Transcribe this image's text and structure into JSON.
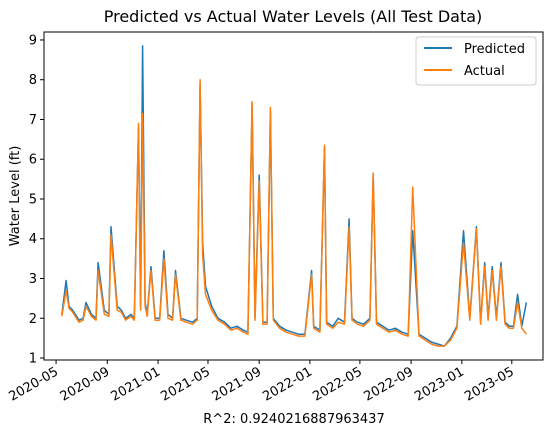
{
  "chart_data": {
    "type": "line",
    "title": "Predicted vs Actual Water Levels (All Test Data)",
    "xlabel": "R^2: 0.9240216887963437",
    "ylabel": "Water Level (ft)",
    "xlim": [
      "2020-04-02",
      "2023-07-15"
    ],
    "ylim": [
      0.95,
      9.2
    ],
    "grid": false,
    "legend_position": "upper right",
    "xticks": [
      "2020-05",
      "2020-09",
      "2021-01",
      "2021-05",
      "2021-09",
      "2022-01",
      "2022-05",
      "2022-09",
      "2023-01",
      "2023-05"
    ],
    "yticks": [
      1,
      2,
      3,
      4,
      5,
      6,
      7,
      8,
      9
    ],
    "x": [
      "2020-05-15",
      "2020-05-25",
      "2020-06-01",
      "2020-06-10",
      "2020-06-25",
      "2020-07-05",
      "2020-07-12",
      "2020-07-25",
      "2020-08-05",
      "2020-08-10",
      "2020-08-25",
      "2020-09-05",
      "2020-09-10",
      "2020-09-25",
      "2020-10-05",
      "2020-10-15",
      "2020-10-28",
      "2020-11-05",
      "2020-11-15",
      "2020-11-20",
      "2020-11-25",
      "2020-12-01",
      "2020-12-06",
      "2020-12-15",
      "2020-12-25",
      "2021-01-05",
      "2021-01-15",
      "2021-01-25",
      "2021-02-05",
      "2021-02-12",
      "2021-02-25",
      "2021-03-10",
      "2021-03-25",
      "2021-04-05",
      "2021-04-12",
      "2021-04-18",
      "2021-04-25",
      "2021-05-10",
      "2021-05-25",
      "2021-06-10",
      "2021-06-25",
      "2021-07-10",
      "2021-07-25",
      "2021-08-05",
      "2021-08-15",
      "2021-08-22",
      "2021-09-01",
      "2021-09-10",
      "2021-09-20",
      "2021-09-28",
      "2021-10-05",
      "2021-10-20",
      "2021-11-05",
      "2021-11-20",
      "2021-12-05",
      "2021-12-20",
      "2022-01-05",
      "2022-01-10",
      "2022-01-25",
      "2022-02-05",
      "2022-02-10",
      "2022-02-25",
      "2022-03-10",
      "2022-03-25",
      "2022-04-05",
      "2022-04-12",
      "2022-04-25",
      "2022-05-10",
      "2022-05-25",
      "2022-06-02",
      "2022-06-10",
      "2022-06-25",
      "2022-07-10",
      "2022-07-25",
      "2022-08-10",
      "2022-08-25",
      "2022-09-05",
      "2022-09-20",
      "2022-10-05",
      "2022-10-20",
      "2022-11-05",
      "2022-11-20",
      "2022-12-05",
      "2022-12-20",
      "2023-01-05",
      "2023-01-20",
      "2023-02-05",
      "2023-02-15",
      "2023-02-25",
      "2023-03-05",
      "2023-03-15",
      "2023-03-25",
      "2023-04-05",
      "2023-04-15",
      "2023-04-25",
      "2023-05-05",
      "2023-05-15",
      "2023-05-25",
      "2023-06-05"
    ],
    "series": [
      {
        "name": "Predicted",
        "color": "#1f77b4",
        "values": [
          2.1,
          2.95,
          2.3,
          2.2,
          1.95,
          2.0,
          2.4,
          2.1,
          2.0,
          3.4,
          2.2,
          2.1,
          4.3,
          2.3,
          2.2,
          2.0,
          2.1,
          2.0,
          6.8,
          2.3,
          8.85,
          2.4,
          2.1,
          3.3,
          2.0,
          2.0,
          3.7,
          2.1,
          2.0,
          3.2,
          2.0,
          1.95,
          1.9,
          2.0,
          7.9,
          3.9,
          2.8,
          2.3,
          2.0,
          1.9,
          1.75,
          1.8,
          1.7,
          1.65,
          7.4,
          2.0,
          5.6,
          1.9,
          1.9,
          7.2,
          2.0,
          1.8,
          1.7,
          1.65,
          1.6,
          1.6,
          3.2,
          1.8,
          1.7,
          6.3,
          1.9,
          1.8,
          2.0,
          1.9,
          4.5,
          2.0,
          1.9,
          1.85,
          2.0,
          5.6,
          1.9,
          1.8,
          1.7,
          1.75,
          1.65,
          1.6,
          4.2,
          1.6,
          1.5,
          1.4,
          1.35,
          1.3,
          1.5,
          1.8,
          4.2,
          2.0,
          4.3,
          1.9,
          3.4,
          2.0,
          3.3,
          2.0,
          3.4,
          1.9,
          1.8,
          1.8,
          2.6,
          1.8,
          2.4
        ]
      },
      {
        "name": "Actual",
        "color": "#ff7f0e",
        "values": [
          2.05,
          2.7,
          2.25,
          2.15,
          1.9,
          1.95,
          2.3,
          2.05,
          1.95,
          3.2,
          2.1,
          2.05,
          4.1,
          2.2,
          2.15,
          1.95,
          2.05,
          1.95,
          6.9,
          2.2,
          7.15,
          2.3,
          2.05,
          3.2,
          1.95,
          1.95,
          3.5,
          2.0,
          1.95,
          3.1,
          1.95,
          1.9,
          1.85,
          1.95,
          8.0,
          3.6,
          2.6,
          2.2,
          1.95,
          1.85,
          1.7,
          1.75,
          1.65,
          1.6,
          7.45,
          1.95,
          5.45,
          1.85,
          1.85,
          7.3,
          1.95,
          1.75,
          1.65,
          1.6,
          1.55,
          1.55,
          3.1,
          1.75,
          1.65,
          6.35,
          1.85,
          1.75,
          1.9,
          1.85,
          4.3,
          1.95,
          1.85,
          1.8,
          1.95,
          5.65,
          1.85,
          1.75,
          1.65,
          1.7,
          1.6,
          1.55,
          5.3,
          1.55,
          1.45,
          1.35,
          1.3,
          1.3,
          1.45,
          1.75,
          3.9,
          1.95,
          4.25,
          1.85,
          3.3,
          1.95,
          3.2,
          1.95,
          3.3,
          1.85,
          1.75,
          1.75,
          2.4,
          1.75,
          1.6
        ]
      }
    ]
  }
}
